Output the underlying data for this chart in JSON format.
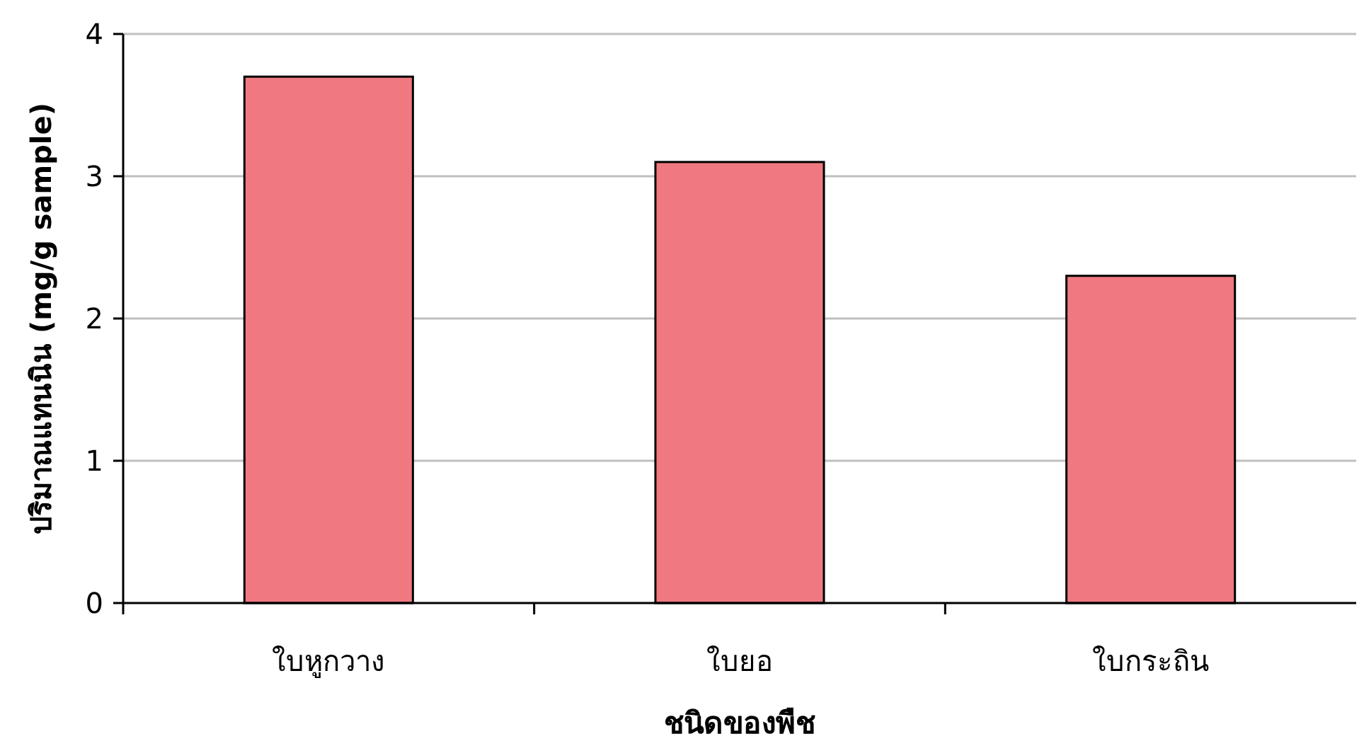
{
  "chart_data": {
    "type": "bar",
    "xlabel": "ชนิดของพืช",
    "ylabel": "ปริมาณแทนนิน (mg/g sample)",
    "categories": [
      "ใบหูกวาง",
      "ใบยอ",
      "ใบกระถิน"
    ],
    "values": [
      3.7,
      3.1,
      2.3
    ],
    "color": "#f07880",
    "ylim": [
      0,
      4
    ],
    "yticks": [
      0,
      1,
      2,
      3,
      4
    ],
    "grid": "y"
  }
}
